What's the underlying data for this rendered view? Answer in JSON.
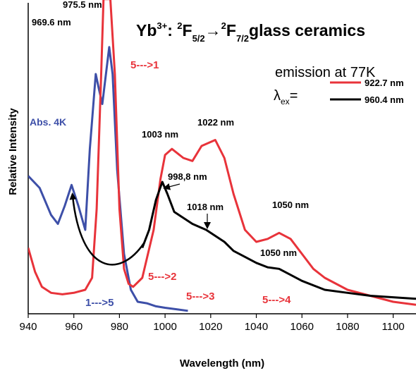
{
  "chart_data": {
    "type": "line",
    "title": {
      "ion": "Yb",
      "ion_charge": "3+",
      "sep": ": ",
      "s1_pre": "2",
      "s1": "F",
      "s1_sub": "5/2",
      "arrow": "→",
      "s2_pre": "2",
      "s2": "F",
      "s2_sub": "7/2",
      "tail": "glass ceramics"
    },
    "xlabel": "Wavelength (nm)",
    "ylabel": "Relative Intensity",
    "xlim": [
      940,
      1110
    ],
    "ylim": [
      0,
      1
    ],
    "xticks": [
      940,
      960,
      980,
      1000,
      1020,
      1040,
      1060,
      1080,
      1100
    ],
    "legend": {
      "heading": "emission at 77K",
      "lambda": "λ",
      "lambda_sub": "ex",
      "lambda_eq": "=",
      "placement": "top-right",
      "entries": [
        {
          "label": "922.7 nm",
          "color": "#e8333a"
        },
        {
          "label": "960.4 nm",
          "color": "#000000"
        }
      ]
    },
    "series": [
      {
        "name": "Abs. 4K",
        "color": "#3d4fa8",
        "x": [
          940,
          945,
          950,
          953,
          956,
          959,
          962,
          965,
          967,
          969.6,
          971,
          972.5,
          975.5,
          977,
          979,
          982,
          985,
          988,
          992,
          996,
          1000,
          1005,
          1010
        ],
        "y": [
          0.46,
          0.42,
          0.33,
          0.3,
          0.36,
          0.43,
          0.36,
          0.28,
          0.55,
          0.8,
          0.75,
          0.7,
          0.89,
          0.8,
          0.48,
          0.2,
          0.08,
          0.04,
          0.035,
          0.025,
          0.02,
          0.015,
          0.01
        ]
      },
      {
        "name": "922.7 nm",
        "color": "#e8333a",
        "x": [
          940,
          943,
          946,
          950,
          955,
          960,
          965,
          968,
          970,
          972,
          973,
          976,
          978,
          980,
          982,
          984,
          986,
          990,
          995,
          998,
          1000,
          1003,
          1008,
          1012,
          1016,
          1022,
          1026,
          1030,
          1035,
          1040,
          1045,
          1050,
          1055,
          1060,
          1065,
          1070,
          1080,
          1090,
          1100,
          1110
        ],
        "y": [
          0.22,
          0.14,
          0.09,
          0.07,
          0.065,
          0.07,
          0.08,
          0.12,
          0.35,
          0.8,
          1.05,
          1.05,
          0.8,
          0.35,
          0.15,
          0.1,
          0.09,
          0.12,
          0.28,
          0.45,
          0.53,
          0.55,
          0.52,
          0.51,
          0.56,
          0.58,
          0.52,
          0.4,
          0.28,
          0.24,
          0.25,
          0.27,
          0.25,
          0.2,
          0.15,
          0.12,
          0.08,
          0.06,
          0.04,
          0.03
        ]
      },
      {
        "name": "960.4 nm",
        "color": "#000000",
        "x": [
          990,
          993,
          996,
          998.8,
          1001,
          1004,
          1008,
          1012,
          1015,
          1018,
          1022,
          1026,
          1030,
          1035,
          1040,
          1045,
          1050,
          1055,
          1060,
          1070,
          1080,
          1090,
          1100,
          1110
        ],
        "y": [
          0.22,
          0.28,
          0.38,
          0.44,
          0.4,
          0.34,
          0.32,
          0.3,
          0.29,
          0.28,
          0.26,
          0.24,
          0.21,
          0.19,
          0.17,
          0.155,
          0.15,
          0.13,
          0.11,
          0.08,
          0.07,
          0.06,
          0.055,
          0.05
        ]
      }
    ],
    "annotations": {
      "peaks": [
        {
          "text": "975.5 nm",
          "x": 975.5,
          "y": 1.05
        },
        {
          "text": "969.6 nm",
          "x": 969.6,
          "y": 0.97
        },
        {
          "text": "1003 nm",
          "x": 1003,
          "y": 0.62
        },
        {
          "text": "1022 nm",
          "x": 1022,
          "y": 0.68
        },
        {
          "text": "998,8 nm",
          "x": 998.8,
          "y": 0.45
        },
        {
          "text": "1018 nm",
          "x": 1018,
          "y": 0.33
        },
        {
          "text": "1050 nm",
          "x": 1050,
          "y": 0.35
        },
        {
          "text": "1050 nm",
          "x": 1050,
          "y": 0.16
        }
      ],
      "transitions": [
        {
          "text": "5--->1",
          "color": "#e8333a"
        },
        {
          "text": "5--->2",
          "color": "#e8333a"
        },
        {
          "text": "5--->3",
          "color": "#e8333a"
        },
        {
          "text": "5--->4",
          "color": "#e8333a"
        },
        {
          "text": "1--->5",
          "color": "#3d4fa8"
        }
      ],
      "abs_label": {
        "text": "Abs. 4K",
        "color": "#3d4fa8"
      }
    }
  }
}
